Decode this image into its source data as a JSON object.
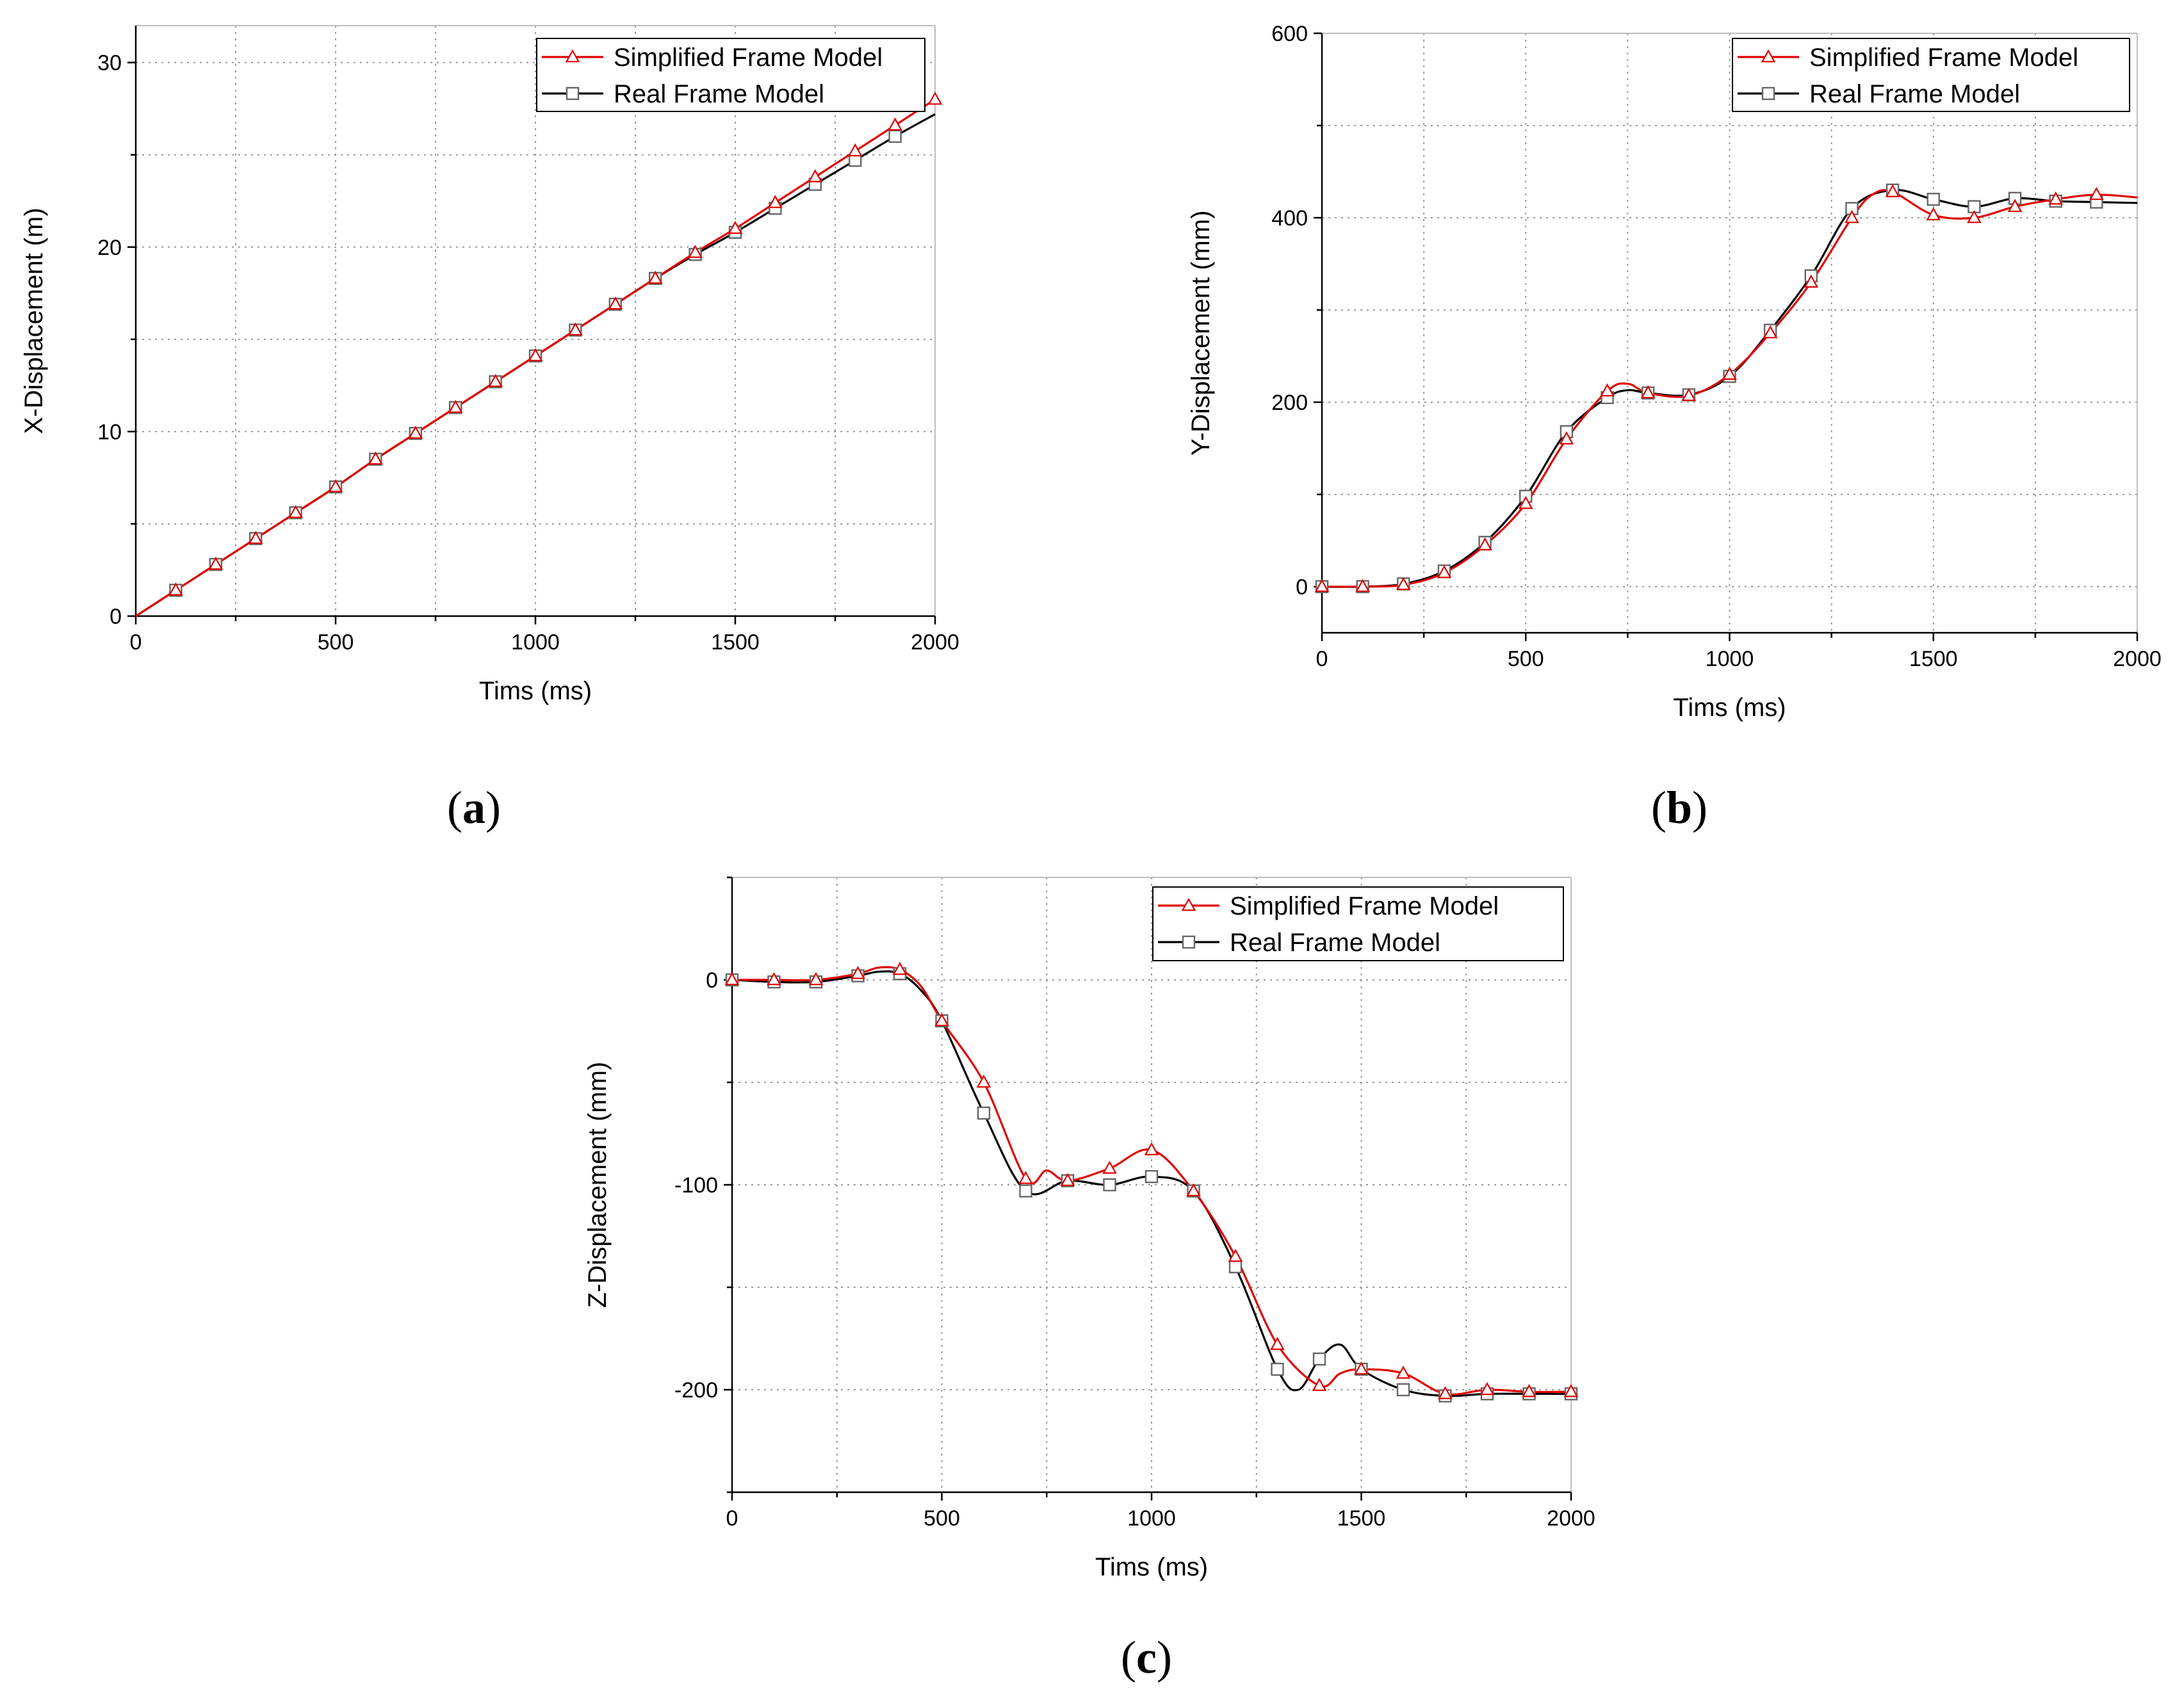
{
  "chart_data": [
    {
      "id": "a",
      "type": "line",
      "caption_letter": "a",
      "xlabel": "Tims (ms)",
      "ylabel": "X-Displacement (m)",
      "xlim": [
        0,
        2000
      ],
      "ylim": [
        0,
        32
      ],
      "xticks": [
        0,
        500,
        1000,
        1500,
        2000
      ],
      "yticks": [
        0,
        10,
        20,
        30
      ],
      "grid": true,
      "legend_position": "top-right",
      "series": [
        {
          "name": "Simplified Frame Model",
          "color": "#e00000",
          "marker": "triangle",
          "x": [
            0,
            100,
            200,
            300,
            400,
            500,
            600,
            700,
            800,
            900,
            1000,
            1100,
            1200,
            1300,
            1400,
            1500,
            1600,
            1700,
            1800,
            1900,
            2000
          ],
          "y": [
            0,
            1.4,
            2.8,
            4.2,
            5.6,
            7.0,
            8.5,
            9.9,
            11.3,
            12.7,
            14.1,
            15.5,
            16.9,
            18.3,
            19.7,
            21.0,
            22.4,
            23.8,
            25.2,
            26.6,
            28.0
          ],
          "markers_x": [
            100,
            200,
            300,
            400,
            500,
            600,
            700,
            800,
            900,
            1000,
            1100,
            1200,
            1300,
            1400,
            1500,
            1600,
            1700,
            1800,
            1900,
            2000
          ]
        },
        {
          "name": "Real Frame Model",
          "color": "#000000",
          "marker": "square",
          "x": [
            0,
            100,
            200,
            300,
            400,
            500,
            600,
            700,
            800,
            900,
            1000,
            1100,
            1200,
            1300,
            1400,
            1500,
            1600,
            1700,
            1800,
            1900,
            2000
          ],
          "y": [
            0,
            1.4,
            2.8,
            4.2,
            5.6,
            7.0,
            8.5,
            9.9,
            11.3,
            12.7,
            14.1,
            15.5,
            16.9,
            18.3,
            19.6,
            20.8,
            22.1,
            23.4,
            24.7,
            26.0,
            27.2
          ],
          "markers_x": [
            100,
            200,
            300,
            400,
            500,
            600,
            700,
            800,
            900,
            1000,
            1100,
            1200,
            1300,
            1400,
            1500,
            1600,
            1700,
            1800,
            1900
          ]
        }
      ]
    },
    {
      "id": "b",
      "type": "line",
      "caption_letter": "b",
      "xlabel": "Tims (ms)",
      "ylabel": "Y-Displacement (mm)",
      "xlim": [
        0,
        2000
      ],
      "ylim": [
        -50,
        600
      ],
      "xticks": [
        0,
        500,
        1000,
        1500,
        2000
      ],
      "yticks": [
        0,
        200,
        400,
        600
      ],
      "grid": true,
      "legend_position": "top-right",
      "series": [
        {
          "name": "Simplified Frame Model",
          "color": "#e00000",
          "marker": "triangle",
          "x": [
            0,
            100,
            200,
            300,
            400,
            500,
            600,
            700,
            750,
            800,
            900,
            1000,
            1100,
            1200,
            1300,
            1350,
            1400,
            1500,
            1600,
            1700,
            1800,
            1900,
            2000
          ],
          "y": [
            0,
            0,
            2,
            15,
            45,
            90,
            160,
            212,
            220,
            210,
            207,
            230,
            275,
            330,
            400,
            425,
            428,
            403,
            400,
            412,
            420,
            425,
            422
          ],
          "markers_x": [
            0,
            100,
            200,
            300,
            400,
            500,
            600,
            700,
            800,
            900,
            1000,
            1100,
            1200,
            1300,
            1400,
            1500,
            1600,
            1700,
            1800,
            1900
          ]
        },
        {
          "name": "Real Frame Model",
          "color": "#000000",
          "marker": "square",
          "x": [
            0,
            100,
            200,
            300,
            400,
            500,
            600,
            700,
            750,
            800,
            900,
            1000,
            1100,
            1200,
            1300,
            1400,
            1500,
            1600,
            1700,
            1800,
            1900,
            2000
          ],
          "y": [
            0,
            0,
            3,
            17,
            48,
            98,
            168,
            205,
            213,
            210,
            208,
            228,
            278,
            337,
            410,
            430,
            420,
            412,
            421,
            418,
            417,
            416
          ],
          "markers_x": [
            0,
            100,
            200,
            300,
            400,
            500,
            600,
            700,
            800,
            900,
            1000,
            1100,
            1200,
            1300,
            1400,
            1500,
            1600,
            1700,
            1800,
            1900
          ]
        }
      ]
    },
    {
      "id": "c",
      "type": "line",
      "caption_letter": "c",
      "xlabel": "Tims (ms)",
      "ylabel": "Z-Displacement (mm)",
      "xlim": [
        0,
        2000
      ],
      "ylim": [
        -250,
        50
      ],
      "xticks": [
        0,
        500,
        1000,
        1500,
        2000
      ],
      "yticks": [
        -200,
        -100,
        0
      ],
      "grid": true,
      "legend_position": "top-right",
      "series": [
        {
          "name": "Simplified Frame Model",
          "color": "#e00000",
          "marker": "triangle",
          "x": [
            0,
            100,
            200,
            300,
            350,
            400,
            450,
            500,
            600,
            700,
            750,
            800,
            900,
            1000,
            1100,
            1200,
            1300,
            1400,
            1450,
            1500,
            1600,
            1700,
            1800,
            1900,
            2000
          ],
          "y": [
            0,
            0,
            0,
            3,
            6,
            5,
            -3,
            -20,
            -50,
            -97,
            -93,
            -98,
            -92,
            -83,
            -103,
            -135,
            -178,
            -198,
            -192,
            -190,
            -192,
            -202,
            -200,
            -201,
            -201
          ],
          "markers_x": [
            0,
            100,
            200,
            300,
            400,
            500,
            600,
            700,
            800,
            900,
            1000,
            1100,
            1200,
            1300,
            1400,
            1500,
            1600,
            1700,
            1800,
            1900,
            2000
          ]
        },
        {
          "name": "Real Frame Model",
          "color": "#000000",
          "marker": "square",
          "x": [
            0,
            100,
            200,
            300,
            350,
            400,
            450,
            500,
            600,
            700,
            800,
            900,
            1000,
            1100,
            1200,
            1300,
            1350,
            1400,
            1450,
            1500,
            1600,
            1700,
            1800,
            1900,
            2000
          ],
          "y": [
            0,
            -1,
            -1,
            2,
            4,
            3,
            -5,
            -20,
            -65,
            -103,
            -98,
            -100,
            -96,
            -103,
            -140,
            -190,
            -200,
            -185,
            -178,
            -190,
            -200,
            -203,
            -202,
            -202,
            -202
          ],
          "markers_x": [
            0,
            100,
            200,
            300,
            400,
            500,
            600,
            700,
            800,
            900,
            1000,
            1100,
            1200,
            1300,
            1400,
            1500,
            1600,
            1700,
            1800,
            1900,
            2000
          ]
        }
      ]
    }
  ]
}
